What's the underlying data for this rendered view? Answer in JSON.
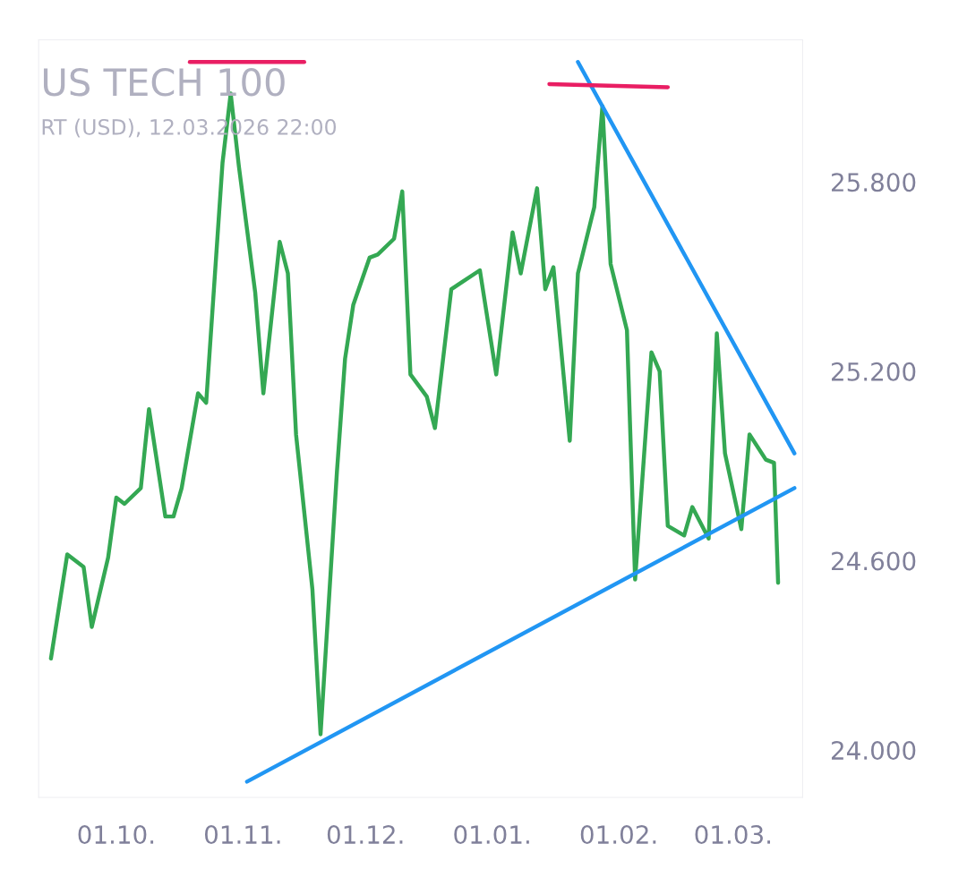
{
  "chart_data": {
    "type": "line",
    "title": "US TECH 100",
    "subtitle": "RT (USD), 12.03.2026 22:00",
    "xlim": [
      "2025-09-12",
      "2026-03-18"
    ],
    "ylim": [
      23850,
      26250
    ],
    "xticks": [
      {
        "value": "2025-10-01",
        "label": "01.10."
      },
      {
        "value": "2025-11-01",
        "label": "01.11."
      },
      {
        "value": "2025-12-01",
        "label": "01.12."
      },
      {
        "value": "2026-01-01",
        "label": "01.01."
      },
      {
        "value": "2026-02-01",
        "label": "01.02."
      },
      {
        "value": "2026-03-01",
        "label": "01.03."
      }
    ],
    "yticks": [
      {
        "value": 24000,
        "label": "24.000"
      },
      {
        "value": 24600,
        "label": "24.600"
      },
      {
        "value": 25200,
        "label": "25.200"
      },
      {
        "value": 25800,
        "label": "25.800"
      }
    ],
    "grid": false,
    "series": [
      {
        "color": "#34a853",
        "x": [
          "2025-09-15",
          "2025-09-19",
          "2025-09-23",
          "2025-09-25",
          "2025-09-29",
          "2025-10-01",
          "2025-10-03",
          "2025-10-07",
          "2025-10-09",
          "2025-10-13",
          "2025-10-15",
          "2025-10-17",
          "2025-10-21",
          "2025-10-23",
          "2025-10-27",
          "2025-10-29",
          "2025-10-31",
          "2025-11-04",
          "2025-11-06",
          "2025-11-10",
          "2025-11-12",
          "2025-11-14",
          "2025-11-18",
          "2025-11-20",
          "2025-11-24",
          "2025-11-26",
          "2025-11-28",
          "2025-12-02",
          "2025-12-04",
          "2025-12-08",
          "2025-12-10",
          "2025-12-12",
          "2025-12-16",
          "2025-12-18",
          "2025-12-22",
          "2025-12-29",
          "2026-01-02",
          "2026-01-06",
          "2026-01-08",
          "2026-01-12",
          "2026-01-14",
          "2026-01-16",
          "2026-01-20",
          "2026-01-22",
          "2026-01-26",
          "2026-01-28",
          "2026-01-30",
          "2026-02-03",
          "2026-02-05",
          "2026-02-09",
          "2026-02-11",
          "2026-02-13",
          "2026-02-17",
          "2026-02-19",
          "2026-02-23",
          "2026-02-25",
          "2026-02-27",
          "2026-03-03",
          "2026-03-05",
          "2026-03-09",
          "2026-03-11",
          "2026-03-12"
        ],
        "values": [
          24290,
          24620,
          24580,
          24390,
          24610,
          24800,
          24780,
          24830,
          25080,
          24740,
          24740,
          24830,
          25130,
          25100,
          25860,
          26080,
          25850,
          25450,
          25130,
          25610,
          25510,
          25000,
          24510,
          24050,
          24880,
          25240,
          25410,
          25560,
          25570,
          25620,
          25770,
          25190,
          25120,
          25020,
          25460,
          25520,
          25190,
          25640,
          25510,
          25780,
          25460,
          25530,
          24980,
          25510,
          25720,
          26040,
          25540,
          25330,
          24540,
          25260,
          25200,
          24710,
          24680,
          24770,
          24670,
          25320,
          24940,
          24700,
          25000,
          24920,
          24910,
          24530
        ]
      },
      {
        "type": "line",
        "color": "#2196f3",
        "x": [
          "2025-11-02",
          "2026-03-16"
        ],
        "values": [
          23900,
          24830
        ]
      },
      {
        "type": "line",
        "color": "#2196f3",
        "x": [
          "2026-01-22",
          "2026-03-16"
        ],
        "values": [
          26180,
          24940
        ]
      },
      {
        "type": "line",
        "color": "#e91e63",
        "x": [
          "2025-10-19",
          "2025-11-16"
        ],
        "values": [
          26180,
          26180
        ]
      },
      {
        "type": "line",
        "color": "#e91e63",
        "x": [
          "2026-01-15",
          "2026-02-13"
        ],
        "values": [
          26110,
          26100
        ]
      }
    ]
  }
}
